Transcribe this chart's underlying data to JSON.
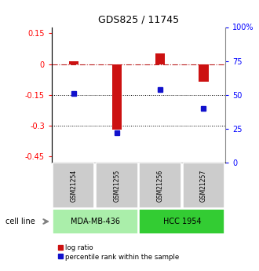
{
  "title": "GDS825 / 11745",
  "samples": [
    "GSM21254",
    "GSM21255",
    "GSM21256",
    "GSM21257"
  ],
  "log_ratios": [
    0.012,
    -0.32,
    0.05,
    -0.085
  ],
  "percentile_ranks": [
    51,
    22,
    54,
    40
  ],
  "cell_lines": [
    {
      "label": "MDA-MB-436",
      "color": "#aaeeaa"
    },
    {
      "label": "HCC 1954",
      "color": "#33cc33"
    }
  ],
  "ylim_left": [
    -0.48,
    0.18
  ],
  "ylim_right": [
    0,
    100
  ],
  "left_ticks": [
    0.15,
    0.0,
    -0.15,
    -0.3,
    -0.45
  ],
  "left_tick_labels": [
    "0.15",
    "0",
    "-0.15",
    "-0.3",
    "-0.45"
  ],
  "right_ticks": [
    100,
    75,
    50,
    25,
    0
  ],
  "right_tick_labels": [
    "100%",
    "75",
    "50",
    "25",
    "0"
  ],
  "bar_color": "#cc1111",
  "dot_color": "#1111cc",
  "bar_width": 0.22,
  "background_color": "#ffffff",
  "legend_items": [
    "log ratio",
    "percentile rank within the sample"
  ],
  "cell_line_label": "cell line",
  "sample_box_color": "#cccccc",
  "grid_color": "#000000"
}
